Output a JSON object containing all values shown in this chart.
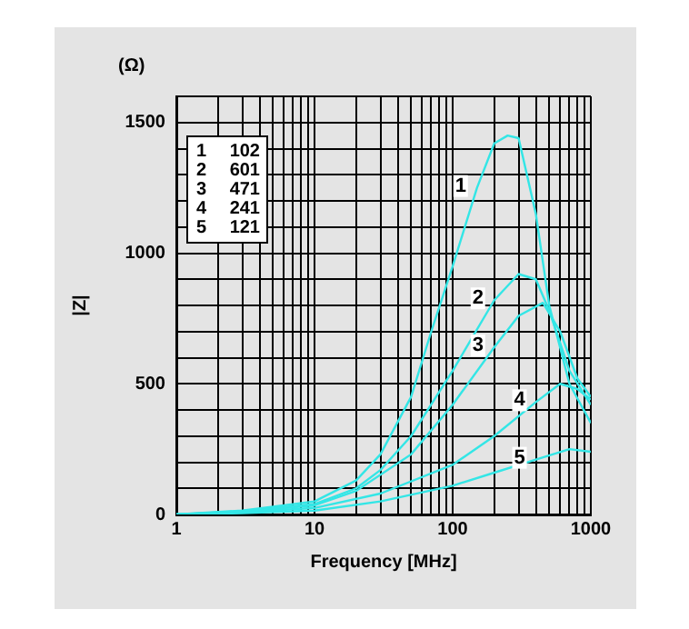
{
  "chart_data": {
    "type": "line",
    "xlabel": "Frequency [MHz]",
    "ylabel": "|Z|",
    "log": "x",
    "grid": true,
    "legend": false,
    "marker": "none",
    "line_style": "solid",
    "xlim": [
      1,
      1000
    ],
    "ylim": [
      0,
      1600
    ],
    "xticks": [
      1,
      {
        "value": 2,
        "label": null
      },
      {
        "value": 3,
        "label": null
      },
      {
        "value": 4,
        "label": null
      },
      {
        "value": 5,
        "label": null
      },
      {
        "value": 6,
        "label": null
      },
      {
        "value": 7,
        "label": null
      },
      {
        "value": 8,
        "label": null
      },
      {
        "value": 9,
        "label": null
      },
      10,
      {
        "value": 20,
        "label": null
      },
      {
        "value": 30,
        "label": null
      },
      {
        "value": 40,
        "label": null
      },
      {
        "value": 50,
        "label": null
      },
      {
        "value": 60,
        "label": null
      },
      {
        "value": 70,
        "label": null
      },
      {
        "value": 80,
        "label": null
      },
      {
        "value": 90,
        "label": null
      },
      100,
      {
        "value": 200,
        "label": null
      },
      {
        "value": 300,
        "label": null
      },
      {
        "value": 400,
        "label": null
      },
      {
        "value": 500,
        "label": null
      },
      {
        "value": 600,
        "label": null
      },
      {
        "value": 700,
        "label": null
      },
      {
        "value": 800,
        "label": null
      },
      {
        "value": 900,
        "label": null
      },
      1000
    ],
    "yticks": [
      0,
      {
        "value": 100,
        "label": null
      },
      {
        "value": 200,
        "label": null
      },
      {
        "value": 300,
        "label": null
      },
      {
        "value": 400,
        "label": null
      },
      500,
      {
        "value": 600,
        "label": null
      },
      {
        "value": 700,
        "label": null
      },
      {
        "value": 800,
        "label": null
      },
      {
        "value": 900,
        "label": null
      },
      1000,
      {
        "value": 1100,
        "label": null
      },
      {
        "value": 1200,
        "label": null
      },
      {
        "value": 1300,
        "label": null
      },
      {
        "value": 1400,
        "label": null
      },
      1500,
      {
        "value": 1600,
        "label": null
      }
    ],
    "series": [
      {
        "name": "1",
        "color": "#33e6e6",
        "x": [
          1,
          3,
          10,
          20,
          30,
          50,
          70,
          100,
          150,
          200,
          250,
          300,
          400,
          500,
          700,
          1000
        ],
        "values": [
          0,
          15,
          50,
          130,
          230,
          450,
          700,
          950,
          1250,
          1420,
          1450,
          1440,
          1150,
          800,
          500,
          350
        ]
      },
      {
        "name": "2",
        "color": "#33e6e6",
        "x": [
          1,
          3,
          10,
          20,
          30,
          50,
          100,
          200,
          300,
          400,
          500,
          700,
          1000
        ],
        "values": [
          0,
          12,
          40,
          100,
          170,
          300,
          550,
          820,
          920,
          900,
          780,
          550,
          420
        ]
      },
      {
        "name": "3",
        "color": "#33e6e6",
        "x": [
          1,
          3,
          10,
          20,
          50,
          100,
          200,
          300,
          450,
          600,
          800,
          1000
        ],
        "values": [
          0,
          10,
          35,
          90,
          230,
          420,
          640,
          760,
          810,
          700,
          520,
          450
        ]
      },
      {
        "name": "4",
        "color": "#33e6e6",
        "x": [
          1,
          3,
          10,
          30,
          100,
          200,
          400,
          600,
          800,
          1000
        ],
        "values": [
          0,
          8,
          25,
          80,
          190,
          300,
          430,
          500,
          480,
          440
        ]
      },
      {
        "name": "5",
        "color": "#33e6e6",
        "x": [
          1,
          3,
          10,
          30,
          100,
          200,
          400,
          700,
          1000
        ],
        "values": [
          0,
          5,
          15,
          50,
          110,
          160,
          210,
          250,
          240
        ]
      }
    ],
    "annotations": [
      "(Ω)",
      "1 102",
      "2 601",
      "3 471",
      "4 241",
      "5 121"
    ]
  }
}
